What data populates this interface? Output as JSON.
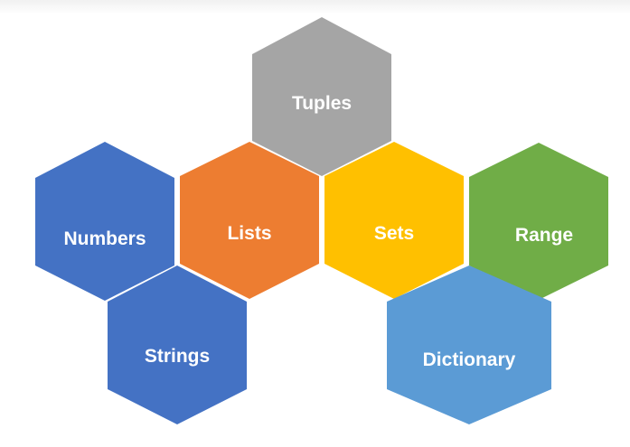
{
  "diagram": {
    "hexagons": [
      {
        "id": "tuples",
        "label": "Tuples",
        "color": "#a5a5a5"
      },
      {
        "id": "numbers",
        "label": "Numbers",
        "color": "#4472c4"
      },
      {
        "id": "lists",
        "label": "Lists",
        "color": "#ed7d31"
      },
      {
        "id": "sets",
        "label": "Sets",
        "color": "#ffc000"
      },
      {
        "id": "range",
        "label": "Range",
        "color": "#70ad47"
      },
      {
        "id": "strings",
        "label": "Strings",
        "color": "#4472c4"
      },
      {
        "id": "dictionary",
        "label": "Dictionary",
        "color": "#5b9bd5"
      }
    ]
  }
}
